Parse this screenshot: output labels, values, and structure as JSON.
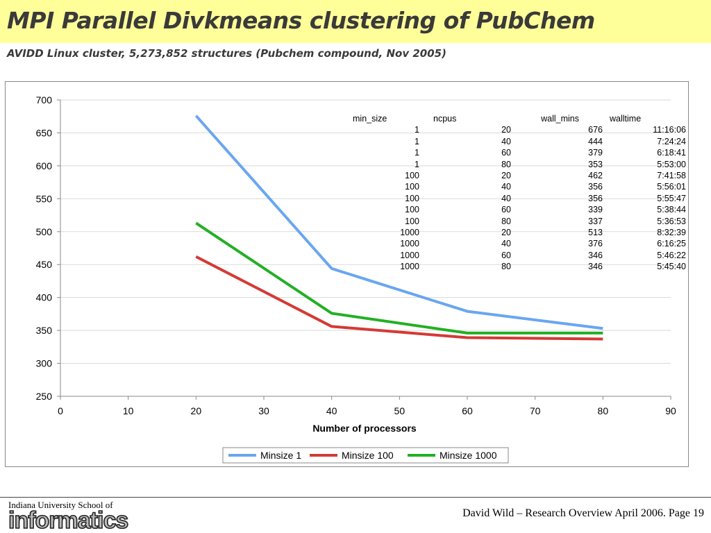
{
  "slide": {
    "title": "MPI Parallel Divkmeans clustering of PubChem",
    "subtitle": "AVIDD Linux cluster, 5,273,852 structures (Pubchem compound, Nov 2005)"
  },
  "footer": {
    "school": "Indiana University School of",
    "logo_text": "informatics",
    "credit": "David Wild – Research Overview April 2006.  Page 19"
  },
  "colors": {
    "title_bar": "#ffff99",
    "minsize1": "#6aa6f0",
    "minsize100": "#d43a35",
    "minsize1000": "#22b024"
  },
  "chart_data": {
    "type": "line",
    "title": "",
    "xlabel": "Number of processors",
    "ylabel": "",
    "xlim": [
      0,
      90
    ],
    "ylim": [
      250,
      700
    ],
    "x_ticks": [
      "0",
      "10",
      "20",
      "30",
      "40",
      "50",
      "60",
      "70",
      "80",
      "90"
    ],
    "y_ticks": [
      "250",
      "300",
      "350",
      "400",
      "450",
      "500",
      "550",
      "600",
      "650",
      "700"
    ],
    "grid": "horizontal",
    "legend_position": "bottom",
    "series": [
      {
        "name": "Minsize 1",
        "x": [
          20,
          40,
          60,
          80
        ],
        "values": [
          676,
          444,
          379,
          353
        ],
        "color": "#6aa6f0"
      },
      {
        "name": "Minsize 100",
        "x": [
          20,
          40,
          60,
          80
        ],
        "values": [
          462,
          356,
          339,
          337
        ],
        "color": "#d43a35"
      },
      {
        "name": "Minsize 1000",
        "x": [
          20,
          40,
          60,
          80
        ],
        "values": [
          513,
          376,
          346,
          346
        ],
        "color": "#22b024"
      }
    ],
    "table": {
      "headers": [
        "min_size",
        "ncpus",
        "wall_mins",
        "walltime"
      ],
      "rows": [
        [
          "1",
          "20",
          "676",
          "11:16:06"
        ],
        [
          "1",
          "40",
          "444",
          "7:24:24"
        ],
        [
          "1",
          "60",
          "379",
          "6:18:41"
        ],
        [
          "1",
          "80",
          "353",
          "5:53:00"
        ],
        [
          "100",
          "20",
          "462",
          "7:41:58"
        ],
        [
          "100",
          "40",
          "356",
          "5:56:01"
        ],
        [
          "100",
          "40",
          "356",
          "5:55:47"
        ],
        [
          "100",
          "60",
          "339",
          "5:38:44"
        ],
        [
          "100",
          "80",
          "337",
          "5:36:53"
        ],
        [
          "1000",
          "20",
          "513",
          "8:32:39"
        ],
        [
          "1000",
          "40",
          "376",
          "6:16:25"
        ],
        [
          "1000",
          "60",
          "346",
          "5:46:22"
        ],
        [
          "1000",
          "80",
          "346",
          "5:45:40"
        ]
      ]
    }
  }
}
